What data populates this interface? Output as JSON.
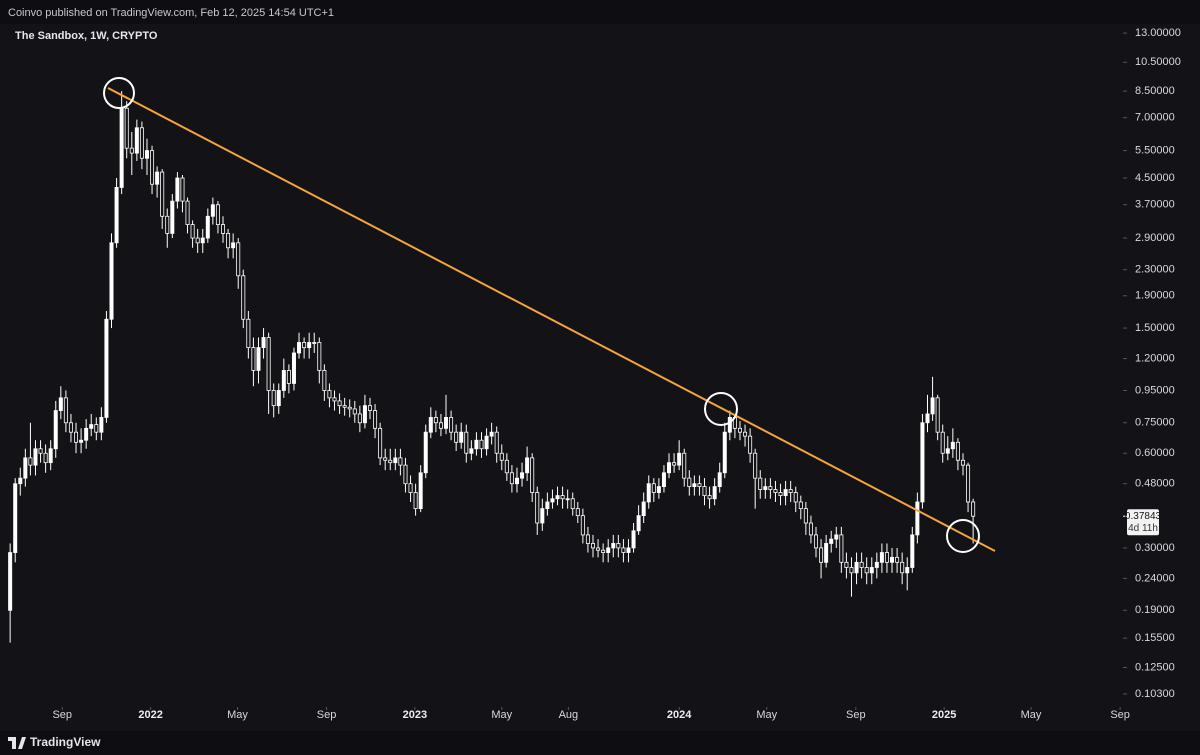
{
  "chart_data": {
    "type": "candlestick",
    "publisher": "Coinvo published on TradingView.com, Feb 12, 2025 14:54 UTC+1",
    "title": "The Sandbox, 1W, CRYPTO",
    "brand": "TradingView",
    "countdown": "4d 11h",
    "log_y": true,
    "up_color": "#ffffff",
    "down_color": "#131217",
    "x": [
      "2021-06-21",
      "2021-06-28",
      "2021-07-05",
      "2021-07-12",
      "2021-07-19",
      "2021-07-26",
      "2021-08-02",
      "2021-08-09",
      "2021-08-16",
      "2021-08-23",
      "2021-08-30",
      "2021-09-06",
      "2021-09-13",
      "2021-09-20",
      "2021-09-27",
      "2021-10-04",
      "2021-10-11",
      "2021-10-18",
      "2021-10-25",
      "2021-11-01",
      "2021-11-08",
      "2021-11-15",
      "2021-11-22",
      "2021-11-29",
      "2021-12-06",
      "2021-12-13",
      "2021-12-20",
      "2021-12-27",
      "2022-01-03",
      "2022-01-10",
      "2022-01-17",
      "2022-01-24",
      "2022-01-31",
      "2022-02-07",
      "2022-02-14",
      "2022-02-21",
      "2022-02-28",
      "2022-03-07",
      "2022-03-14",
      "2022-03-21",
      "2022-03-28",
      "2022-04-04",
      "2022-04-11",
      "2022-04-18",
      "2022-04-25",
      "2022-05-02",
      "2022-05-09",
      "2022-05-16",
      "2022-05-23",
      "2022-05-30",
      "2022-06-06",
      "2022-06-13",
      "2022-06-20",
      "2022-06-27",
      "2022-07-04",
      "2022-07-11",
      "2022-07-18",
      "2022-07-25",
      "2022-08-01",
      "2022-08-08",
      "2022-08-15",
      "2022-08-22",
      "2022-08-29",
      "2022-09-05",
      "2022-09-12",
      "2022-09-19",
      "2022-09-26",
      "2022-10-03",
      "2022-10-10",
      "2022-10-17",
      "2022-10-24",
      "2022-10-31",
      "2022-11-07",
      "2022-11-14",
      "2022-11-21",
      "2022-11-28",
      "2022-12-05",
      "2022-12-12",
      "2022-12-19",
      "2022-12-26",
      "2023-01-02",
      "2023-01-09",
      "2023-01-16",
      "2023-01-23",
      "2023-01-30",
      "2023-02-06",
      "2023-02-13",
      "2023-02-20",
      "2023-02-27",
      "2023-03-06",
      "2023-03-13",
      "2023-03-20",
      "2023-03-27",
      "2023-04-03",
      "2023-04-10",
      "2023-04-17",
      "2023-04-24",
      "2023-05-01",
      "2023-05-08",
      "2023-05-15",
      "2023-05-22",
      "2023-05-29",
      "2023-06-05",
      "2023-06-12",
      "2023-06-19",
      "2023-06-26",
      "2023-07-03",
      "2023-07-10",
      "2023-07-17",
      "2023-07-24",
      "2023-07-31",
      "2023-08-07",
      "2023-08-14",
      "2023-08-21",
      "2023-08-28",
      "2023-09-04",
      "2023-09-11",
      "2023-09-18",
      "2023-09-25",
      "2023-10-02",
      "2023-10-09",
      "2023-10-16",
      "2023-10-23",
      "2023-10-30",
      "2023-11-06",
      "2023-11-13",
      "2023-11-20",
      "2023-11-27",
      "2023-12-04",
      "2023-12-11",
      "2023-12-18",
      "2023-12-25",
      "2024-01-01",
      "2024-01-08",
      "2024-01-15",
      "2024-01-22",
      "2024-01-29",
      "2024-02-05",
      "2024-02-12",
      "2024-02-19",
      "2024-02-26",
      "2024-03-04",
      "2024-03-11",
      "2024-03-18",
      "2024-03-25",
      "2024-04-01",
      "2024-04-08",
      "2024-04-15",
      "2024-04-22",
      "2024-04-29",
      "2024-05-06",
      "2024-05-13",
      "2024-05-20",
      "2024-05-27",
      "2024-06-03",
      "2024-06-10",
      "2024-06-17",
      "2024-06-24",
      "2024-07-01",
      "2024-07-08",
      "2024-07-15",
      "2024-07-22",
      "2024-07-29",
      "2024-08-05",
      "2024-08-12",
      "2024-08-19",
      "2024-08-26",
      "2024-09-02",
      "2024-09-09",
      "2024-09-16",
      "2024-09-23",
      "2024-09-30",
      "2024-10-07",
      "2024-10-14",
      "2024-10-21",
      "2024-10-28",
      "2024-11-04",
      "2024-11-11",
      "2024-11-18",
      "2024-11-25",
      "2024-12-02",
      "2024-12-09",
      "2024-12-16",
      "2024-12-23",
      "2024-12-30",
      "2025-01-06",
      "2025-01-13",
      "2025-01-20",
      "2025-01-27",
      "2025-02-03",
      "2025-02-10"
    ],
    "open": [
      0.19,
      0.29,
      0.48,
      0.5,
      0.58,
      0.55,
      0.62,
      0.6,
      0.56,
      0.62,
      0.82,
      0.9,
      0.75,
      0.7,
      0.65,
      0.66,
      0.72,
      0.74,
      0.7,
      0.78,
      1.6,
      2.8,
      4.2,
      7.5,
      5.6,
      5.4,
      6.5,
      5.2,
      5.5,
      4.3,
      4.7,
      3.4,
      3.0,
      3.8,
      4.5,
      3.8,
      3.2,
      2.9,
      2.8,
      2.9,
      3.4,
      3.7,
      3.2,
      3.0,
      2.7,
      2.8,
      2.2,
      1.6,
      1.3,
      1.1,
      1.3,
      1.4,
      0.95,
      0.85,
      0.95,
      1.1,
      1.0,
      1.25,
      1.35,
      1.3,
      1.35,
      1.35,
      1.1,
      0.95,
      0.9,
      0.88,
      0.85,
      0.84,
      0.83,
      0.8,
      0.75,
      0.85,
      0.82,
      0.72,
      0.58,
      0.57,
      0.56,
      0.58,
      0.55,
      0.48,
      0.45,
      0.4,
      0.52,
      0.7,
      0.78,
      0.75,
      0.72,
      0.78,
      0.7,
      0.65,
      0.7,
      0.6,
      0.62,
      0.66,
      0.62,
      0.68,
      0.7,
      0.6,
      0.57,
      0.52,
      0.48,
      0.5,
      0.52,
      0.58,
      0.45,
      0.36,
      0.4,
      0.42,
      0.43,
      0.44,
      0.43,
      0.43,
      0.4,
      0.38,
      0.33,
      0.31,
      0.3,
      0.295,
      0.29,
      0.3,
      0.31,
      0.3,
      0.29,
      0.3,
      0.34,
      0.38,
      0.42,
      0.48,
      0.45,
      0.47,
      0.52,
      0.56,
      0.55,
      0.6,
      0.5,
      0.47,
      0.48,
      0.47,
      0.44,
      0.43,
      0.47,
      0.52,
      0.7,
      0.78,
      0.72,
      0.7,
      0.68,
      0.6,
      0.5,
      0.46,
      0.47,
      0.46,
      0.45,
      0.44,
      0.46,
      0.45,
      0.42,
      0.4,
      0.36,
      0.33,
      0.3,
      0.27,
      0.31,
      0.32,
      0.33,
      0.27,
      0.26,
      0.25,
      0.27,
      0.26,
      0.25,
      0.26,
      0.27,
      0.29,
      0.27,
      0.28,
      0.27,
      0.25,
      0.26,
      0.33,
      0.42,
      0.75,
      0.8,
      0.9,
      0.7,
      0.6,
      0.62,
      0.65,
      0.57,
      0.55,
      0.42
    ],
    "high": [
      0.31,
      0.5,
      0.54,
      0.62,
      0.75,
      0.66,
      0.66,
      0.64,
      0.66,
      0.88,
      0.98,
      0.95,
      0.8,
      0.75,
      0.72,
      0.77,
      0.8,
      0.78,
      0.84,
      1.7,
      3.0,
      4.5,
      8.5,
      7.9,
      6.3,
      6.9,
      6.8,
      6.0,
      5.7,
      4.9,
      4.8,
      3.6,
      4.0,
      4.7,
      4.6,
      3.9,
      3.3,
      3.1,
      3.1,
      3.6,
      3.9,
      3.8,
      3.4,
      3.1,
      3.0,
      2.9,
      2.3,
      1.7,
      1.4,
      1.4,
      1.5,
      1.45,
      1.0,
      1.0,
      1.2,
      1.15,
      1.3,
      1.45,
      1.4,
      1.45,
      1.45,
      1.4,
      1.15,
      1.0,
      0.95,
      0.93,
      0.9,
      0.89,
      0.88,
      0.85,
      0.92,
      0.9,
      0.86,
      0.75,
      0.62,
      0.62,
      0.62,
      0.62,
      0.58,
      0.51,
      0.48,
      0.55,
      0.74,
      0.84,
      0.82,
      0.8,
      0.92,
      0.82,
      0.74,
      0.75,
      0.74,
      0.66,
      0.7,
      0.7,
      0.72,
      0.75,
      0.73,
      0.64,
      0.6,
      0.55,
      0.54,
      0.56,
      0.63,
      0.6,
      0.47,
      0.43,
      0.45,
      0.46,
      0.47,
      0.47,
      0.46,
      0.45,
      0.42,
      0.4,
      0.35,
      0.33,
      0.32,
      0.31,
      0.32,
      0.33,
      0.33,
      0.32,
      0.32,
      0.36,
      0.41,
      0.45,
      0.51,
      0.5,
      0.5,
      0.55,
      0.6,
      0.6,
      0.66,
      0.62,
      0.53,
      0.51,
      0.51,
      0.5,
      0.47,
      0.5,
      0.56,
      0.75,
      0.82,
      0.8,
      0.76,
      0.74,
      0.72,
      0.62,
      0.53,
      0.5,
      0.5,
      0.49,
      0.48,
      0.49,
      0.49,
      0.47,
      0.44,
      0.42,
      0.38,
      0.35,
      0.32,
      0.33,
      0.34,
      0.35,
      0.35,
      0.29,
      0.28,
      0.29,
      0.29,
      0.28,
      0.28,
      0.29,
      0.31,
      0.31,
      0.3,
      0.3,
      0.29,
      0.28,
      0.35,
      0.45,
      0.8,
      0.92,
      1.05,
      0.92,
      0.74,
      0.68,
      0.72,
      0.67,
      0.6,
      0.56,
      0.43
    ],
    "low": [
      0.15,
      0.27,
      0.44,
      0.47,
      0.51,
      0.51,
      0.56,
      0.52,
      0.53,
      0.58,
      0.77,
      0.7,
      0.65,
      0.6,
      0.6,
      0.62,
      0.68,
      0.66,
      0.66,
      0.75,
      1.5,
      2.7,
      4.0,
      5.2,
      4.6,
      5.1,
      4.8,
      4.6,
      4.0,
      3.9,
      3.1,
      2.7,
      2.9,
      3.6,
      3.5,
      3.0,
      2.7,
      2.6,
      2.6,
      2.8,
      3.2,
      3.0,
      2.8,
      2.5,
      2.5,
      2.0,
      1.5,
      1.2,
      0.98,
      1.0,
      1.2,
      0.8,
      0.78,
      0.8,
      0.9,
      0.93,
      0.95,
      1.2,
      1.2,
      1.2,
      1.25,
      1.0,
      0.88,
      0.84,
      0.82,
      0.8,
      0.79,
      0.78,
      0.75,
      0.7,
      0.72,
      0.77,
      0.67,
      0.55,
      0.53,
      0.53,
      0.53,
      0.51,
      0.45,
      0.42,
      0.38,
      0.39,
      0.5,
      0.67,
      0.7,
      0.68,
      0.69,
      0.66,
      0.61,
      0.62,
      0.56,
      0.57,
      0.59,
      0.58,
      0.59,
      0.64,
      0.56,
      0.53,
      0.49,
      0.45,
      0.45,
      0.47,
      0.49,
      0.42,
      0.33,
      0.34,
      0.38,
      0.4,
      0.41,
      0.4,
      0.4,
      0.38,
      0.36,
      0.31,
      0.29,
      0.28,
      0.28,
      0.27,
      0.27,
      0.28,
      0.28,
      0.27,
      0.27,
      0.29,
      0.33,
      0.36,
      0.4,
      0.42,
      0.43,
      0.45,
      0.5,
      0.52,
      0.53,
      0.47,
      0.44,
      0.44,
      0.44,
      0.41,
      0.4,
      0.41,
      0.45,
      0.5,
      0.66,
      0.67,
      0.66,
      0.63,
      0.56,
      0.4,
      0.43,
      0.43,
      0.43,
      0.42,
      0.41,
      0.41,
      0.42,
      0.39,
      0.37,
      0.33,
      0.31,
      0.28,
      0.24,
      0.26,
      0.29,
      0.3,
      0.25,
      0.24,
      0.21,
      0.23,
      0.24,
      0.23,
      0.23,
      0.24,
      0.25,
      0.25,
      0.25,
      0.25,
      0.23,
      0.22,
      0.25,
      0.31,
      0.4,
      0.7,
      0.76,
      0.66,
      0.56,
      0.57,
      0.58,
      0.53,
      0.51,
      0.39,
      0.31
    ],
    "close": [
      0.29,
      0.48,
      0.5,
      0.58,
      0.55,
      0.62,
      0.6,
      0.56,
      0.62,
      0.82,
      0.9,
      0.75,
      0.7,
      0.65,
      0.66,
      0.72,
      0.74,
      0.7,
      0.78,
      1.6,
      2.8,
      4.2,
      7.5,
      5.6,
      5.4,
      6.5,
      5.2,
      5.5,
      4.3,
      4.7,
      3.4,
      3.0,
      3.8,
      4.5,
      3.8,
      3.2,
      2.9,
      2.8,
      2.9,
      3.4,
      3.7,
      3.2,
      3.0,
      2.7,
      2.8,
      2.2,
      1.6,
      1.3,
      1.1,
      1.3,
      1.4,
      0.95,
      0.85,
      0.95,
      1.1,
      1.0,
      1.25,
      1.35,
      1.3,
      1.35,
      1.35,
      1.1,
      0.95,
      0.9,
      0.88,
      0.85,
      0.84,
      0.83,
      0.8,
      0.75,
      0.85,
      0.82,
      0.72,
      0.58,
      0.57,
      0.56,
      0.58,
      0.55,
      0.48,
      0.45,
      0.4,
      0.52,
      0.7,
      0.78,
      0.75,
      0.72,
      0.78,
      0.7,
      0.65,
      0.7,
      0.6,
      0.62,
      0.66,
      0.62,
      0.68,
      0.7,
      0.6,
      0.57,
      0.52,
      0.48,
      0.5,
      0.52,
      0.58,
      0.45,
      0.36,
      0.4,
      0.42,
      0.43,
      0.44,
      0.43,
      0.43,
      0.4,
      0.38,
      0.33,
      0.31,
      0.3,
      0.295,
      0.29,
      0.3,
      0.31,
      0.3,
      0.29,
      0.3,
      0.34,
      0.38,
      0.42,
      0.48,
      0.45,
      0.47,
      0.52,
      0.56,
      0.55,
      0.6,
      0.5,
      0.47,
      0.48,
      0.47,
      0.44,
      0.43,
      0.47,
      0.52,
      0.7,
      0.78,
      0.72,
      0.7,
      0.68,
      0.6,
      0.5,
      0.46,
      0.47,
      0.46,
      0.45,
      0.44,
      0.46,
      0.45,
      0.42,
      0.4,
      0.36,
      0.33,
      0.3,
      0.27,
      0.31,
      0.32,
      0.33,
      0.27,
      0.26,
      0.25,
      0.27,
      0.26,
      0.25,
      0.26,
      0.27,
      0.29,
      0.27,
      0.28,
      0.27,
      0.25,
      0.26,
      0.33,
      0.42,
      0.75,
      0.8,
      0.9,
      0.7,
      0.6,
      0.62,
      0.65,
      0.57,
      0.55,
      0.42,
      0.37843
    ],
    "xlim": [
      "2021-06-07",
      "2025-09-05"
    ],
    "xticks": [
      {
        "value": "2021-09-01",
        "label": "Sep"
      },
      {
        "value": "2022-01-01",
        "label": "2022"
      },
      {
        "value": "2022-05-01",
        "label": "May"
      },
      {
        "value": "2022-09-01",
        "label": "Sep"
      },
      {
        "value": "2023-01-01",
        "label": "2023"
      },
      {
        "value": "2023-05-01",
        "label": "May"
      },
      {
        "value": "2023-08-01",
        "label": "Aug"
      },
      {
        "value": "2024-01-01",
        "label": "2024"
      },
      {
        "value": "2024-05-01",
        "label": "May"
      },
      {
        "value": "2024-09-01",
        "label": "Sep"
      },
      {
        "value": "2025-01-01",
        "label": "2025"
      },
      {
        "value": "2025-05-01",
        "label": "May"
      },
      {
        "value": "2025-09-01",
        "label": "Sep"
      }
    ],
    "ylim": [
      0.095,
      14.1
    ],
    "yticks": [
      {
        "value": 13,
        "label": "13.00000"
      },
      {
        "value": 10.5,
        "label": "10.50000"
      },
      {
        "value": 8.5,
        "label": "8.50000"
      },
      {
        "value": 7,
        "label": "7.00000"
      },
      {
        "value": 5.5,
        "label": "5.50000"
      },
      {
        "value": 4.5,
        "label": "4.50000"
      },
      {
        "value": 3.7,
        "label": "3.70000"
      },
      {
        "value": 2.9,
        "label": "2.90000"
      },
      {
        "value": 2.3,
        "label": "2.30000"
      },
      {
        "value": 1.9,
        "label": "1.90000"
      },
      {
        "value": 1.5,
        "label": "1.50000"
      },
      {
        "value": 1.2,
        "label": "1.20000"
      },
      {
        "value": 0.95,
        "label": "0.95000"
      },
      {
        "value": 0.75,
        "label": "0.75000"
      },
      {
        "value": 0.6,
        "label": "0.60000"
      },
      {
        "value": 0.48,
        "label": "0.48000"
      },
      {
        "value": 0.3,
        "label": "0.30000"
      },
      {
        "value": 0.24,
        "label": "0.24000"
      },
      {
        "value": 0.19,
        "label": "0.19000"
      },
      {
        "value": 0.155,
        "label": "0.15500"
      },
      {
        "value": 0.125,
        "label": "0.12500"
      },
      {
        "value": 0.103,
        "label": "0.10300"
      }
    ]
  }
}
